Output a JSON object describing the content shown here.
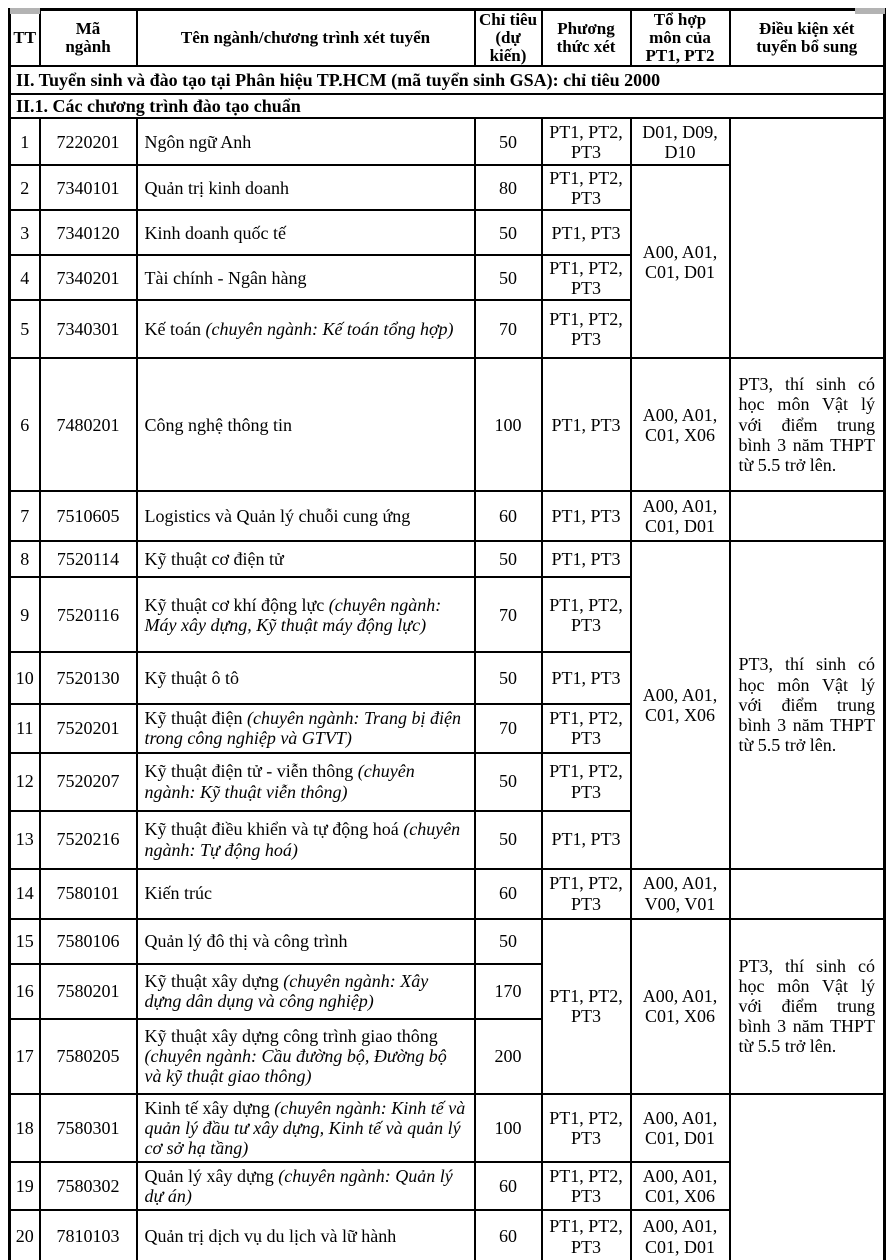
{
  "colors": {
    "border": "#000000",
    "text": "#000000",
    "background": "#ffffff",
    "artifact_gray": "#b3b3b3"
  },
  "header": {
    "columns": [
      "TT",
      "Mã\nngành",
      "Tên ngành/chương trình xét tuyển",
      "Chỉ tiêu\n(dự kiến)",
      "Phương\nthức xét",
      "Tổ hợp\nmôn của\nPT1, PT2",
      "Điều kiện xét\ntuyển bổ sung"
    ]
  },
  "sections": {
    "main": "II. Tuyển sinh và đào tạo tại Phân hiệu TP.HCM (mã tuyển sinh GSA): chỉ tiêu 2000",
    "sub": "II.1. Các chương trình đào tạo chuẩn"
  },
  "table": {
    "rows": [
      {
        "tt": "1",
        "code": "7220201",
        "name": [
          {
            "t": "Ngôn ngữ Anh"
          }
        ],
        "quota": "50",
        "method": {
          "text": "PT1, PT2, PT3",
          "span": 1
        },
        "combo": {
          "text": "D01, D09, D10",
          "span": 1
        },
        "condition": {
          "text": "",
          "span": 5
        }
      },
      {
        "tt": "2",
        "code": "7340101",
        "name": [
          {
            "t": "Quản trị kinh doanh"
          }
        ],
        "quota": "80",
        "method": {
          "text": "PT1, PT2, PT3",
          "span": 1
        },
        "combo": {
          "text": "A00, A01, C01, D01",
          "span": 4
        }
      },
      {
        "tt": "3",
        "code": "7340120",
        "name": [
          {
            "t": "Kinh doanh quốc tế"
          }
        ],
        "quota": "50",
        "method": {
          "text": "PT1, PT3",
          "span": 1
        }
      },
      {
        "tt": "4",
        "code": "7340201",
        "name": [
          {
            "t": "Tài chính - Ngân hàng"
          }
        ],
        "quota": "50",
        "method": {
          "text": "PT1, PT2, PT3",
          "span": 1
        }
      },
      {
        "tt": "5",
        "code": "7340301",
        "name": [
          {
            "t": "Kế toán "
          },
          {
            "t": "(chuyên ngành: Kế toán tổng hợp)",
            "i": true
          }
        ],
        "quota": "70",
        "method": {
          "text": "PT1, PT2, PT3",
          "span": 1
        }
      },
      {
        "tt": "6",
        "code": "7480201",
        "name": [
          {
            "t": "Công nghệ thông tin"
          }
        ],
        "quota": "100",
        "method": {
          "text": "PT1, PT3",
          "span": 1
        },
        "combo": {
          "text": "A00, A01, C01, X06",
          "span": 1
        },
        "condition": {
          "text": "PT3, thí sinh có học môn Vật lý với điểm trung bình 3 năm THPT từ 5.5 trở lên.",
          "span": 1
        }
      },
      {
        "tt": "7",
        "code": "7510605",
        "name": [
          {
            "t": "Logistics và Quản lý chuỗi cung ứng"
          }
        ],
        "quota": "60",
        "method": {
          "text": "PT1, PT3",
          "span": 1
        },
        "combo": {
          "text": "A00, A01, C01, D01",
          "span": 1
        },
        "condition": {
          "text": "",
          "span": 1
        }
      },
      {
        "tt": "8",
        "code": "7520114",
        "name": [
          {
            "t": "Kỹ thuật cơ điện tử"
          }
        ],
        "quota": "50",
        "method": {
          "text": "PT1, PT3",
          "span": 1
        },
        "combo": {
          "text": "A00, A01, C01, X06",
          "span": 6
        },
        "condition": {
          "text": "PT3, thí sinh có học môn Vật lý với điểm trung bình 3 năm THPT từ 5.5 trở lên.",
          "span": 6
        }
      },
      {
        "tt": "9",
        "code": "7520116",
        "name": [
          {
            "t": "Kỹ thuật cơ khí động lực "
          },
          {
            "t": "(chuyên ngành: Máy xây dựng, Kỹ thuật máy động lực)",
            "i": true
          }
        ],
        "quota": "70",
        "method": {
          "text": "PT1, PT2, PT3",
          "span": 1
        }
      },
      {
        "tt": "10",
        "code": "7520130",
        "name": [
          {
            "t": "Kỹ thuật ô tô"
          }
        ],
        "quota": "50",
        "method": {
          "text": "PT1, PT3",
          "span": 1
        }
      },
      {
        "tt": "11",
        "code": "7520201",
        "name": [
          {
            "t": "Kỹ thuật điện "
          },
          {
            "t": "(chuyên ngành: Trang bị điện trong công nghiệp và GTVT)",
            "i": true
          }
        ],
        "quota": "70",
        "method": {
          "text": "PT1, PT2, PT3",
          "span": 1
        }
      },
      {
        "tt": "12",
        "code": "7520207",
        "name": [
          {
            "t": "Kỹ thuật điện tử - viễn thông "
          },
          {
            "t": "(chuyên ngành: Kỹ thuật viễn thông)",
            "i": true
          }
        ],
        "quota": "50",
        "method": {
          "text": "PT1, PT2, PT3",
          "span": 1
        }
      },
      {
        "tt": "13",
        "code": "7520216",
        "name": [
          {
            "t": "Kỹ thuật điều khiển và tự động hoá "
          },
          {
            "t": "(chuyên ngành: Tự động hoá)",
            "i": true
          }
        ],
        "quota": "50",
        "method": {
          "text": "PT1, PT3",
          "span": 1
        }
      },
      {
        "tt": "14",
        "code": "7580101",
        "name": [
          {
            "t": "Kiến trúc"
          }
        ],
        "quota": "60",
        "method": {
          "text": "PT1, PT2, PT3",
          "span": 1
        },
        "combo": {
          "text": "A00, A01, V00, V01",
          "span": 1
        },
        "condition": {
          "text": "",
          "span": 1
        }
      },
      {
        "tt": "15",
        "code": "7580106",
        "name": [
          {
            "t": "Quản lý đô thị và công trình"
          }
        ],
        "quota": "50",
        "method": {
          "text": "PT1, PT2, PT3",
          "span": 3
        },
        "combo": {
          "text": "A00, A01, C01, X06",
          "span": 3
        },
        "condition": {
          "text": "PT3, thí sinh có học môn Vật lý với điểm trung bình 3 năm THPT từ 5.5 trở lên.",
          "span": 3
        }
      },
      {
        "tt": "16",
        "code": "7580201",
        "name": [
          {
            "t": "Kỹ thuật xây dựng "
          },
          {
            "t": "(chuyên ngành: Xây dựng dân dụng và công nghiệp)",
            "i": true
          }
        ],
        "quota": "170"
      },
      {
        "tt": "17",
        "code": "7580205",
        "name": [
          {
            "t": "Kỹ thuật xây dựng công trình giao thông "
          },
          {
            "t": "(chuyên ngành: Cầu đường bộ, Đường bộ và kỹ thuật giao thông)",
            "i": true
          }
        ],
        "quota": "200"
      },
      {
        "tt": "18",
        "code": "7580301",
        "name": [
          {
            "t": "Kinh tế xây dựng "
          },
          {
            "t": "(chuyên ngành: Kinh tế và quản lý đầu tư xây dựng, Kinh tế và quản lý cơ sở hạ tầng)",
            "i": true
          }
        ],
        "quota": "100",
        "method": {
          "text": "PT1, PT2, PT3",
          "span": 1
        },
        "combo": {
          "text": "A00, A01, C01, D01",
          "span": 1
        },
        "condition": {
          "text": "",
          "span": 3
        }
      },
      {
        "tt": "19",
        "code": "7580302",
        "name": [
          {
            "t": "Quản lý xây dựng "
          },
          {
            "t": "(chuyên ngành: Quản lý dự án)",
            "i": true
          }
        ],
        "quota": "60",
        "method": {
          "text": "PT1, PT2, PT3",
          "span": 1
        },
        "combo": {
          "text": "A00, A01, C01, X06",
          "span": 1
        }
      },
      {
        "tt": "20",
        "code": "7810103",
        "name": [
          {
            "t": "Quản trị dịch vụ du lịch và lữ hành"
          }
        ],
        "quota": "60",
        "method": {
          "text": "PT1, PT2, PT3",
          "span": 1
        },
        "combo": {
          "text": "A00, A01, C01, D01",
          "span": 1
        }
      }
    ]
  }
}
